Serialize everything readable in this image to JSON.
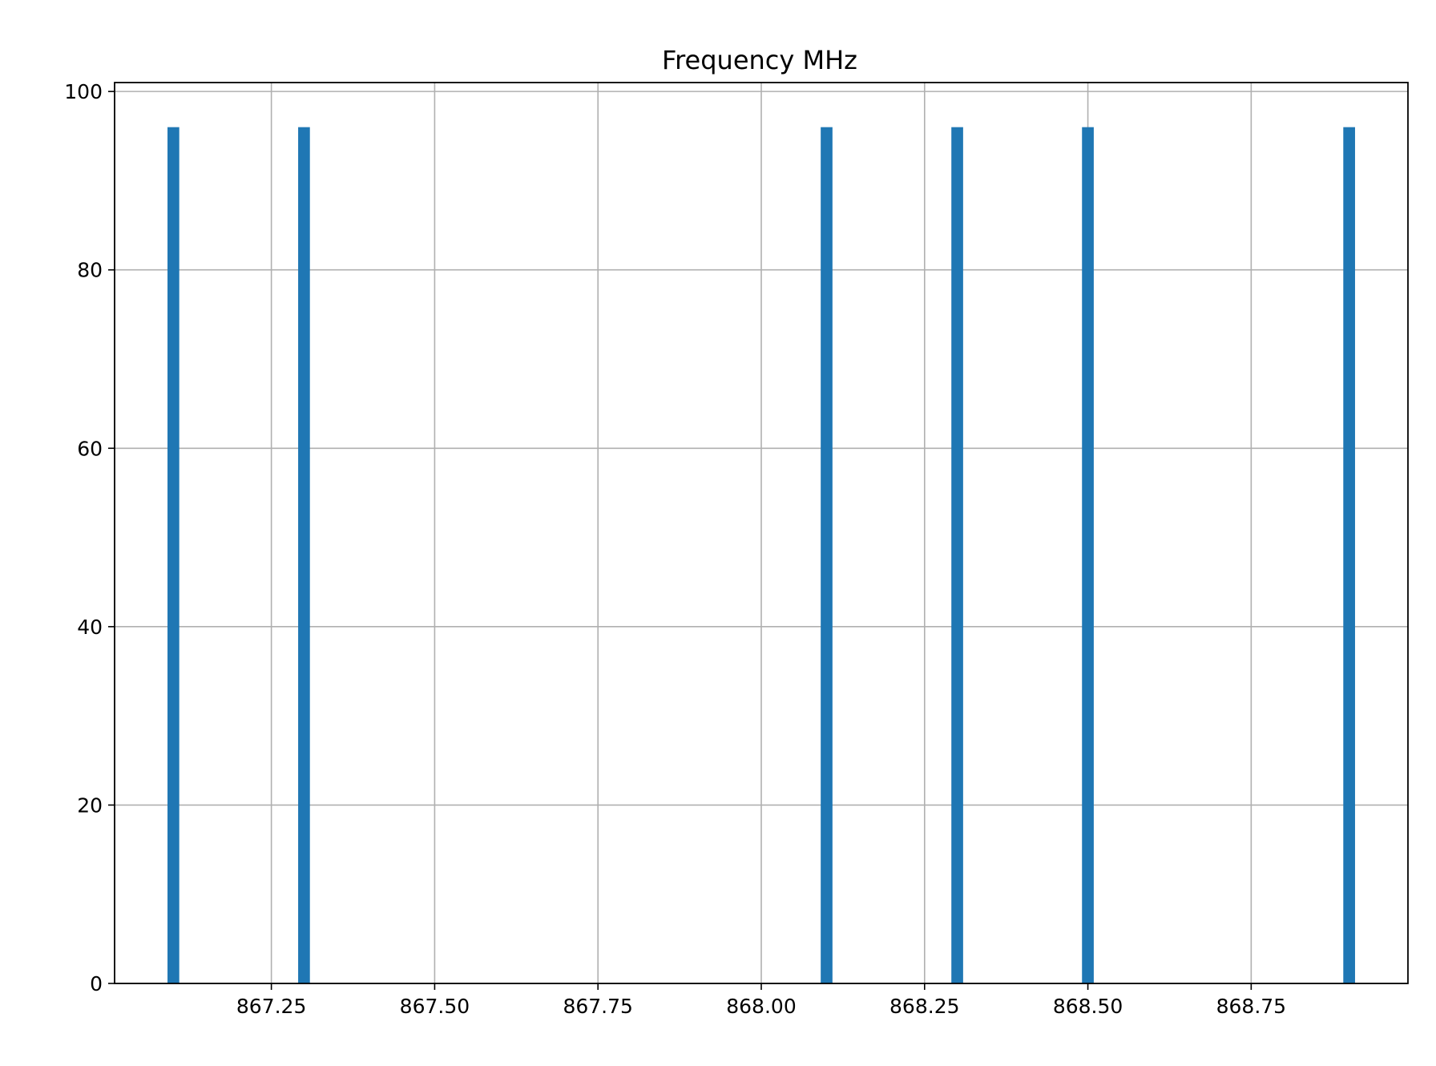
{
  "chart_data": {
    "type": "bar",
    "title": "Frequency MHz",
    "xlabel": "",
    "ylabel": "",
    "xlim": [
      867.01,
      868.99
    ],
    "ylim": [
      0,
      101
    ],
    "grid": true,
    "legend": "none",
    "bar_color": "#1f77b4",
    "bin_width": 0.018,
    "x": [
      867.1,
      867.3,
      868.1,
      868.3,
      868.5,
      868.9
    ],
    "values": [
      96,
      96,
      96,
      96,
      96,
      96
    ],
    "x_ticks": [
      867.25,
      867.5,
      867.75,
      868.0,
      868.25,
      868.5,
      868.75
    ],
    "x_tick_labels": [
      "867.25",
      "867.50",
      "867.75",
      "868.00",
      "868.25",
      "868.50",
      "868.75"
    ],
    "y_ticks": [
      0,
      20,
      40,
      60,
      80,
      100
    ],
    "y_tick_labels": [
      "0",
      "20",
      "40",
      "60",
      "80",
      "100"
    ]
  }
}
